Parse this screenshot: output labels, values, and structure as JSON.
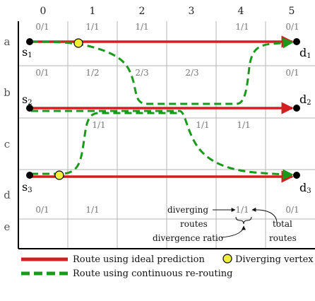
{
  "columns": [
    "0",
    "1",
    "2",
    "3",
    "4",
    "5"
  ],
  "rows": [
    "a",
    "b",
    "c",
    "d",
    "e"
  ],
  "nodes": {
    "s1": {
      "base": "s",
      "sub": "1"
    },
    "s2": {
      "base": "s",
      "sub": "2"
    },
    "s3": {
      "base": "s",
      "sub": "3"
    },
    "d1": {
      "base": "d",
      "sub": "1"
    },
    "d2": {
      "base": "d",
      "sub": "2"
    },
    "d3": {
      "base": "d",
      "sub": "3"
    }
  },
  "ratios": {
    "a_top": [
      "0/1",
      "1/1",
      "1/1",
      "1/1",
      "0/1"
    ],
    "b_top": [
      "0/1",
      "1/2",
      "2/3",
      "2/3",
      "0/1"
    ],
    "c_top": [
      "1/1",
      "1/1",
      "1/1"
    ],
    "e_top": [
      "0/1",
      "1/1",
      "1/1",
      "0/1"
    ]
  },
  "annotations": {
    "diverging": "diverging",
    "routes": "routes",
    "total": "total",
    "total_routes": "routes",
    "divergence_ratio": "divergence ratio"
  },
  "legend": {
    "ideal": "Route using ideal prediction",
    "diverging_vertex": "Diverging vertex",
    "rerouting": "Route using continuous re-routing"
  },
  "colors": {
    "ideal_route": "#d31f1f",
    "rerouting_route": "#1a9a1a",
    "diverging_vertex": "#f2ef3a",
    "grid": "#b5b5b5",
    "ratio_text": "#777777"
  }
}
